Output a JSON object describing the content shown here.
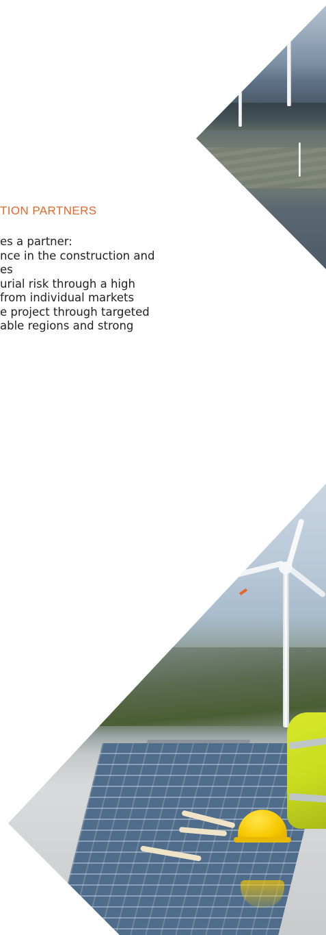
{
  "section": {
    "heading": "TION PARTNERS",
    "lines": [
      "es a partner:",
      "nce in the construction and",
      "es",
      "urial risk through a high",
      "from individual markets",
      "e project through targeted",
      "able regions and strong"
    ]
  },
  "images": {
    "top": "wind-farm-aerial-photo",
    "bottom": "solar-panels-wind-turbine-worker-photo"
  },
  "colors": {
    "accent": "#e8652a",
    "text": "#222222",
    "background": "#ffffff"
  }
}
